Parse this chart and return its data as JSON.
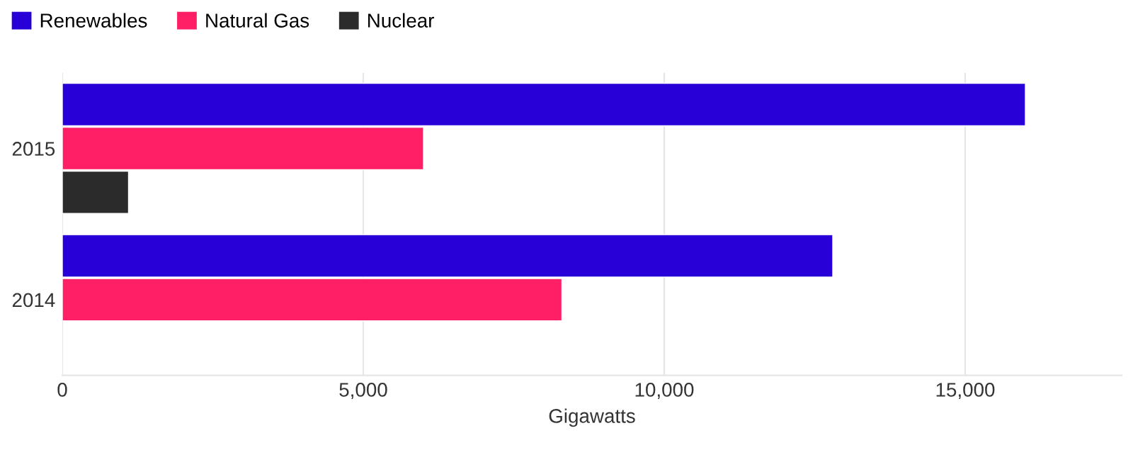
{
  "chart_data": {
    "type": "bar",
    "orientation": "horizontal",
    "xlabel": "Gigawatts",
    "categories": [
      "2015",
      "2014"
    ],
    "series": [
      {
        "name": "Renewables",
        "color": "#2800d7",
        "values": [
          16000,
          12800
        ]
      },
      {
        "name": "Natural Gas",
        "color": "#ff1f66",
        "values": [
          6000,
          8300
        ]
      },
      {
        "name": "Nuclear",
        "color": "#2b2b2b",
        "values": [
          1100,
          null
        ]
      }
    ],
    "xlim": [
      0,
      17600
    ],
    "xticks": [
      0,
      {
        "value": 5000,
        "label": "5,000"
      },
      {
        "value": 10000,
        "label": "10,000"
      },
      {
        "value": 15000,
        "label": "15,000"
      }
    ],
    "grid": "x",
    "legend": "top left"
  }
}
